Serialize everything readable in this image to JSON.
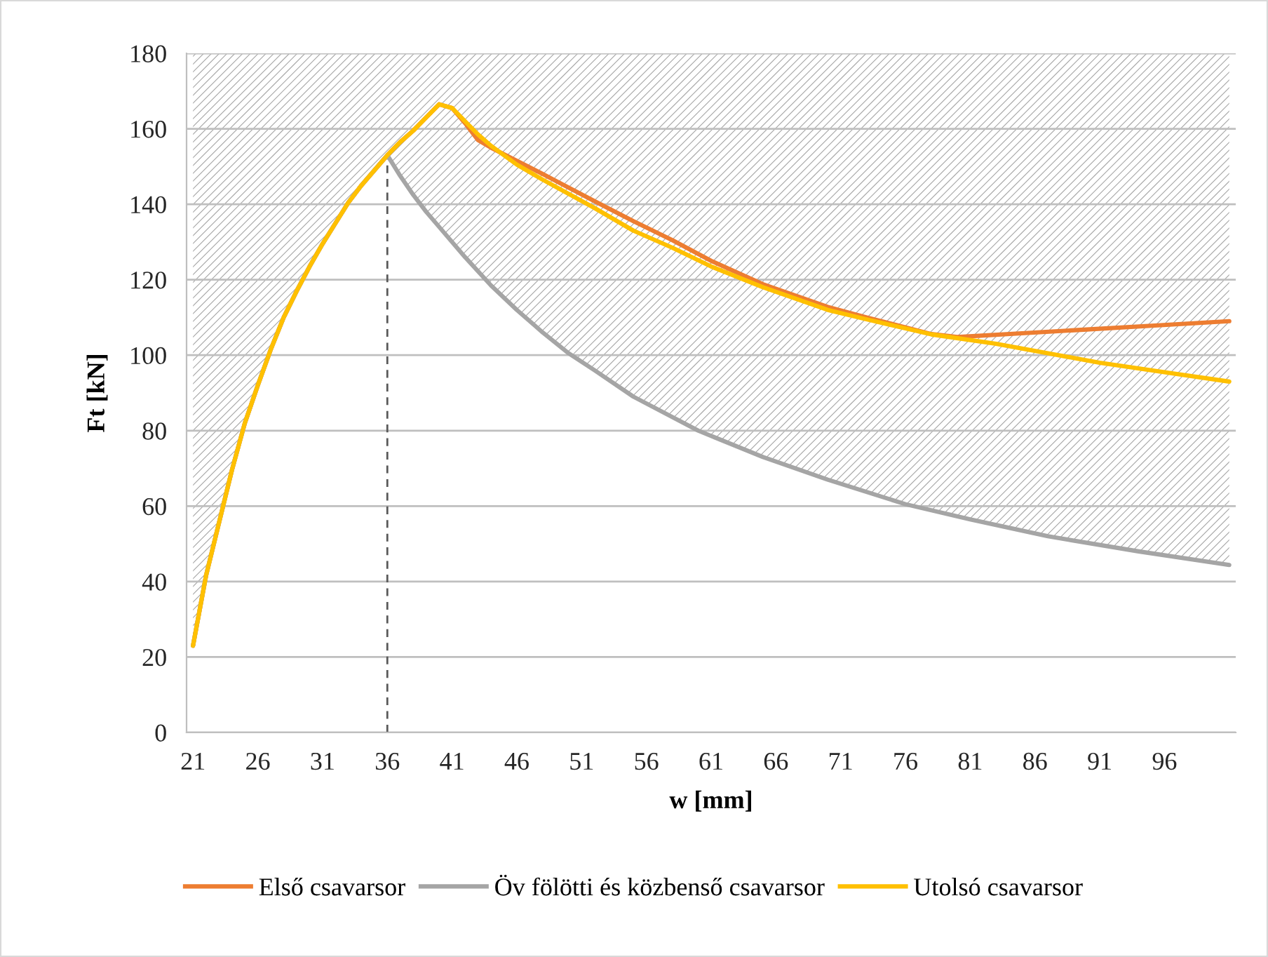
{
  "chart_data": {
    "type": "line",
    "xlabel": "w [mm]",
    "ylabel": "Ft [kN]",
    "xlim": [
      20.5,
      101.5
    ],
    "xticks": [
      21,
      26,
      31,
      36,
      41,
      46,
      51,
      56,
      61,
      66,
      71,
      76,
      81,
      86,
      91,
      96
    ],
    "ylim": [
      0,
      180
    ],
    "yticks": [
      0,
      20,
      40,
      60,
      80,
      100,
      120,
      140,
      160,
      180
    ],
    "grid": "y",
    "legend": "bottom",
    "series": [
      {
        "type": "line",
        "color": "#595959",
        "line_style": "dashed",
        "x": [
          36,
          36
        ],
        "values": [
          0,
          153
        ]
      },
      {
        "name": "Első csavarsor",
        "color": "#ed7d31",
        "x": [
          21,
          22,
          23,
          24,
          25,
          26,
          27,
          28,
          29,
          30,
          31,
          32,
          33,
          34,
          35,
          36,
          37,
          38,
          39,
          40,
          41,
          42,
          43,
          44,
          46,
          48,
          52,
          55,
          58,
          61,
          65,
          70,
          73,
          78,
          80,
          85,
          90,
          95,
          101
        ],
        "values": [
          23,
          41.5,
          55.5,
          69.5,
          82,
          92,
          101.5,
          110,
          117,
          123.5,
          129.5,
          135,
          140.5,
          145,
          149,
          153,
          156.5,
          159.5,
          163,
          166.5,
          165.5,
          161.5,
          157,
          155,
          151.5,
          148,
          140.8,
          135.5,
          130.5,
          125,
          118.8,
          112.8,
          110,
          105.6,
          104.8,
          105.8,
          106.8,
          107.8,
          109
        ]
      },
      {
        "name": "Öv fölötti és közbenső csavarsor",
        "color": "#a5a5a5",
        "x": [
          21,
          22,
          23,
          24,
          25,
          26,
          27,
          28,
          29,
          30,
          31,
          32,
          33,
          34,
          35,
          36,
          37,
          38,
          39,
          40,
          42,
          44,
          46,
          48,
          50,
          52,
          55,
          60,
          65,
          70,
          76,
          81,
          87,
          94,
          101
        ],
        "values": [
          23,
          41.5,
          55.5,
          69.5,
          82,
          92,
          101.5,
          110,
          117,
          123.5,
          129.5,
          135,
          140.5,
          145,
          149,
          153,
          147.5,
          142.5,
          138,
          134,
          126,
          118.5,
          112,
          106,
          100.5,
          96,
          89,
          80,
          73,
          67,
          60.5,
          56.5,
          52,
          48,
          44.4
        ],
        "lower": [
          23,
          41.5,
          55.5,
          69.5,
          82,
          92,
          101.5,
          110,
          117,
          123.5,
          129.5,
          135,
          140.5,
          145,
          149,
          153,
          147.5,
          142.5,
          138,
          134,
          126,
          118.5,
          112,
          106,
          100.5,
          96,
          89,
          80,
          73,
          67,
          60.5,
          56.5,
          52,
          48,
          44.4
        ],
        "upper": [
          180,
          180,
          180,
          180,
          180,
          180,
          180,
          180,
          180,
          180,
          180,
          180,
          180,
          180,
          180,
          180,
          180,
          180,
          180,
          180,
          180,
          180,
          180,
          180,
          180,
          180,
          180,
          180,
          180,
          180,
          180,
          180,
          180,
          180,
          180
        ]
      },
      {
        "name": "Utolsó csavarsor",
        "color": "#ffc000",
        "x": [
          21,
          22,
          23,
          24,
          25,
          26,
          27,
          28,
          29,
          30,
          31,
          32,
          33,
          34,
          35,
          36,
          37,
          38,
          39,
          40,
          41,
          42,
          43,
          44,
          46,
          48,
          52,
          55,
          58,
          61,
          65,
          70,
          73,
          78,
          83,
          87,
          91,
          96,
          101
        ],
        "values": [
          23,
          41.5,
          55.5,
          69.5,
          82,
          92,
          101.5,
          110,
          117,
          123.5,
          129.5,
          135,
          140.5,
          145,
          149,
          153,
          156.5,
          159.5,
          163,
          166.5,
          165.5,
          162,
          158.5,
          155.5,
          150.5,
          146.5,
          139,
          133,
          128.5,
          123.5,
          118,
          112,
          109.5,
          105.5,
          103,
          100.5,
          98,
          95.5,
          93
        ]
      }
    ]
  }
}
